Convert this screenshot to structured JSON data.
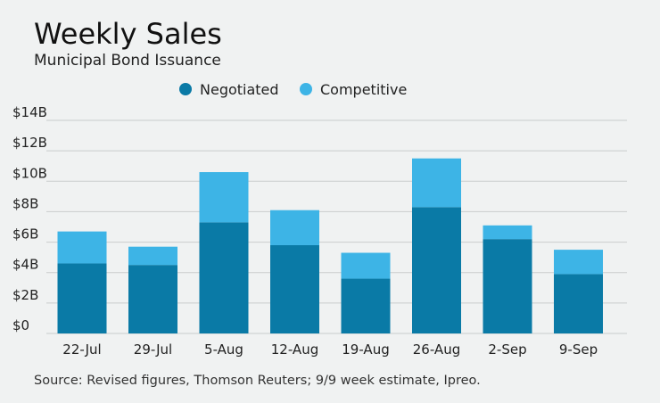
{
  "colors": {
    "negotiated": "#0a7aa6",
    "competitive": "#3db4e6",
    "background": "#f0f2f2"
  },
  "chart_data": {
    "type": "bar",
    "stacked": true,
    "title": "Weekly Sales",
    "subtitle": "Municipal Bond Issuance",
    "categories": [
      "22-Jul",
      "29-Jul",
      "5-Aug",
      "12-Aug",
      "19-Aug",
      "26-Aug",
      "2-Sep",
      "9-Sep"
    ],
    "series": [
      {
        "name": "Negotiated",
        "values": [
          4.6,
          4.5,
          7.3,
          5.8,
          3.6,
          8.3,
          6.2,
          3.9
        ]
      },
      {
        "name": "Competitive",
        "values": [
          2.1,
          1.2,
          3.3,
          2.3,
          1.7,
          3.2,
          0.9,
          1.6
        ]
      }
    ],
    "ylim": [
      0,
      14
    ],
    "yticks": [
      0,
      2,
      4,
      6,
      8,
      10,
      12,
      14
    ],
    "ytick_labels": [
      "$0",
      "$2B",
      "$4B",
      "$6B",
      "$8B",
      "$10B",
      "$12B",
      "$14B"
    ],
    "grid": true,
    "legend_position": "top-center"
  },
  "source": "Source: Revised figures, Thomson Reuters; 9/9 week estimate, Ipreo."
}
